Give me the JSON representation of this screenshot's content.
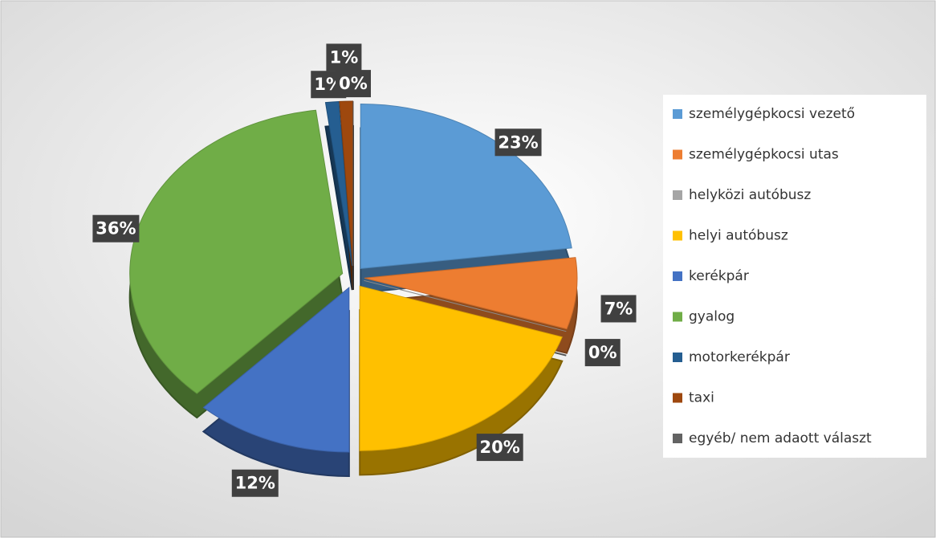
{
  "chart_data": {
    "type": "pie",
    "categories": [
      "személygépkocsi vezető",
      "személygépkocsi utas",
      "helyközi autóbusz",
      "helyi autóbusz",
      "kerékpár",
      "gyalog",
      "motorkerékpár",
      "taxi",
      "egyéb/ nem adaott választ"
    ],
    "values": [
      23,
      7,
      0,
      20,
      12,
      36,
      1,
      1,
      0
    ],
    "value_labels": [
      "23%",
      "7%",
      "0%",
      "20%",
      "12%",
      "36%",
      "1%",
      "1%",
      "0%"
    ],
    "colors": [
      "#5b9bd5",
      "#ed7d31",
      "#a5a5a5",
      "#ffc000",
      "#4472c4",
      "#70ad47",
      "#255e91",
      "#9e480e",
      "#636363"
    ],
    "legend": "right"
  }
}
